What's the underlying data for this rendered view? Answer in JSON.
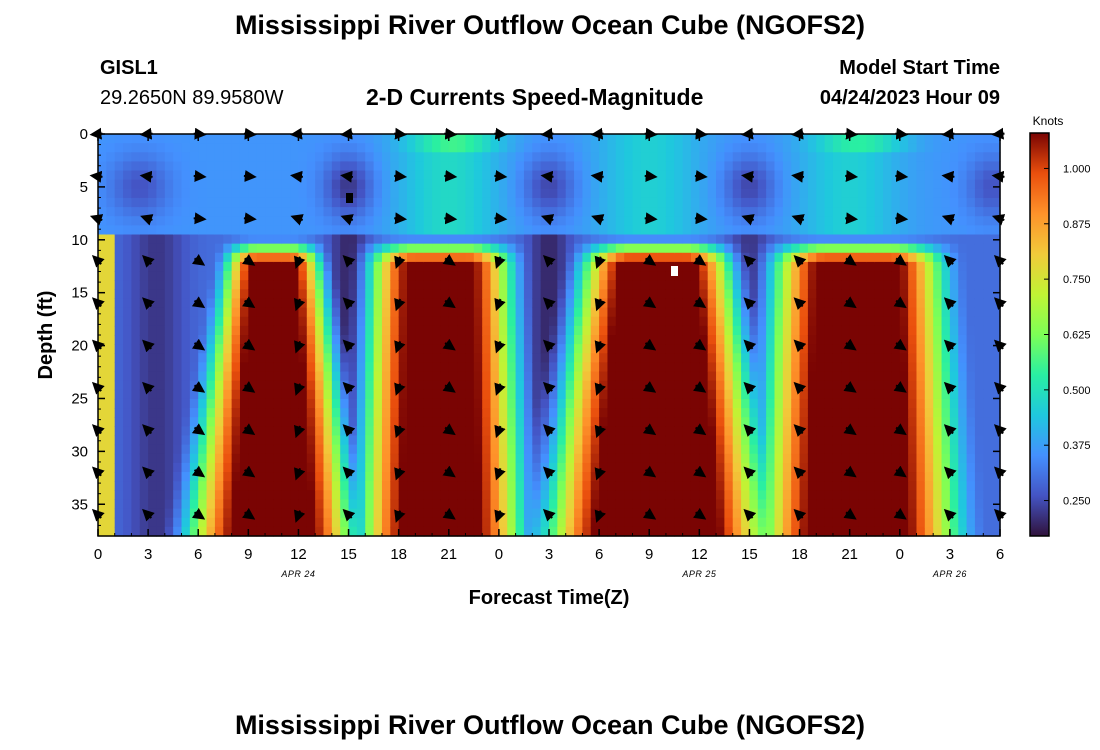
{
  "page": {
    "title_top": "Mississippi River Outflow Ocean Cube (NGOFS2)",
    "title_bottom": "Mississippi River Outflow Ocean Cube (NGOFS2)",
    "station_id": "GISL1",
    "station_coords": "29.2650N  89.9580W",
    "subtitle": "2-D Currents Speed-Magnitude",
    "model_start_label": "Model Start Time",
    "model_start_value": "04/24/2023 Hour 09"
  },
  "chart_data": {
    "type": "heatmap",
    "title": "2-D Currents Speed-Magnitude",
    "xlabel": "Forecast Time(Z)",
    "ylabel": "Depth (ft)",
    "x_range_hours": [
      0,
      54
    ],
    "ylim": [
      0,
      38
    ],
    "y_inverted": true,
    "x_ticks": [
      "0",
      "3",
      "6",
      "9",
      "12",
      "15",
      "18",
      "21",
      "0",
      "3",
      "6",
      "9",
      "12",
      "15",
      "18",
      "21",
      "0",
      "3",
      "6"
    ],
    "y_ticks": [
      0,
      5,
      10,
      15,
      20,
      25,
      30,
      35
    ],
    "date_labels": [
      {
        "text": "APR 24",
        "hour": 12
      },
      {
        "text": "APR 25",
        "hour": 36
      },
      {
        "text": "APR 26",
        "hour": 51
      }
    ],
    "colorbar": {
      "label": "Knots",
      "min": 0.17,
      "max": 1.08,
      "ticks": [
        "1.000",
        "0.875",
        "0.750",
        "0.625",
        "0.500",
        "0.375",
        "0.250"
      ],
      "tick_values": [
        1.0,
        0.875,
        0.75,
        0.625,
        0.5,
        0.375,
        0.25
      ]
    },
    "arrow_depths_ft": [
      0,
      4,
      8,
      12,
      16,
      20,
      24,
      28,
      32,
      36
    ],
    "arrow_hours": [
      0,
      3,
      6,
      9,
      12,
      15,
      18,
      21,
      24,
      27,
      30,
      33,
      36,
      39,
      42,
      45,
      48,
      51,
      54
    ],
    "notes": "Near-surface speeds (0-10 ft) ~0.2-0.5 kt; subsurface maxima (~1.0 kt) near hours 20, 33 and 45; minima near hours 15 and 27."
  }
}
